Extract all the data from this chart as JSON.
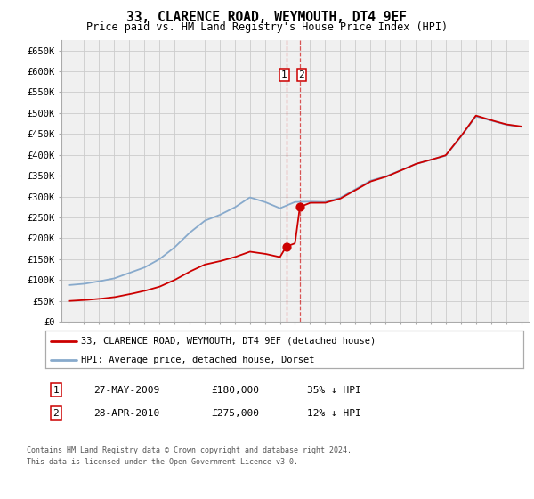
{
  "title": "33, CLARENCE ROAD, WEYMOUTH, DT4 9EF",
  "subtitle": "Price paid vs. HM Land Registry's House Price Index (HPI)",
  "legend_line1": "33, CLARENCE ROAD, WEYMOUTH, DT4 9EF (detached house)",
  "legend_line2": "HPI: Average price, detached house, Dorset",
  "transaction1_date": "27-MAY-2009",
  "transaction1_price": "£180,000",
  "transaction1_hpi": "35% ↓ HPI",
  "transaction1_year": 2009.41,
  "transaction1_value": 180000,
  "transaction2_date": "28-APR-2010",
  "transaction2_price": "£275,000",
  "transaction2_hpi": "12% ↓ HPI",
  "transaction2_year": 2010.32,
  "transaction2_value": 275000,
  "footnote1": "Contains HM Land Registry data © Crown copyright and database right 2024.",
  "footnote2": "This data is licensed under the Open Government Licence v3.0.",
  "red_color": "#cc0000",
  "blue_color": "#88aacc",
  "background_color": "#ffffff",
  "grid_color": "#cccccc",
  "plot_bg": "#f0f0f0",
  "ylim_max": 675000,
  "xlim_start": 1994.5,
  "xlim_end": 2025.5,
  "years_hpi": [
    1995,
    1996,
    1997,
    1998,
    1999,
    2000,
    2001,
    2002,
    2003,
    2004,
    2005,
    2006,
    2007,
    2008,
    2009,
    2010,
    2011,
    2012,
    2013,
    2014,
    2015,
    2016,
    2017,
    2018,
    2019,
    2020,
    2021,
    2022,
    2023,
    2024,
    2025
  ],
  "hpi_values": [
    88000,
    91000,
    97000,
    104000,
    117000,
    130000,
    150000,
    178000,
    213000,
    242000,
    256000,
    274000,
    298000,
    287000,
    272000,
    287000,
    288000,
    287000,
    297000,
    317000,
    338000,
    348000,
    363000,
    378000,
    388000,
    398000,
    443000,
    492000,
    482000,
    472000,
    467000
  ],
  "years_red": [
    1995,
    1996,
    1997,
    1998,
    1999,
    2000,
    2001,
    2002,
    2003,
    2004,
    2005,
    2006,
    2007,
    2008,
    2009.0,
    2009.41,
    2010.0,
    2010.32,
    2011,
    2012,
    2013,
    2014,
    2015,
    2016,
    2017,
    2018,
    2019,
    2020,
    2021,
    2022,
    2023,
    2024,
    2025
  ],
  "red_values": [
    50000,
    52000,
    55000,
    59000,
    66000,
    74000,
    84000,
    100000,
    120000,
    137000,
    145000,
    155000,
    168000,
    163000,
    155000,
    180000,
    188000,
    275000,
    285000,
    285000,
    295000,
    315000,
    336000,
    347000,
    362000,
    378000,
    388000,
    399000,
    444000,
    494000,
    483000,
    473000,
    468000
  ]
}
